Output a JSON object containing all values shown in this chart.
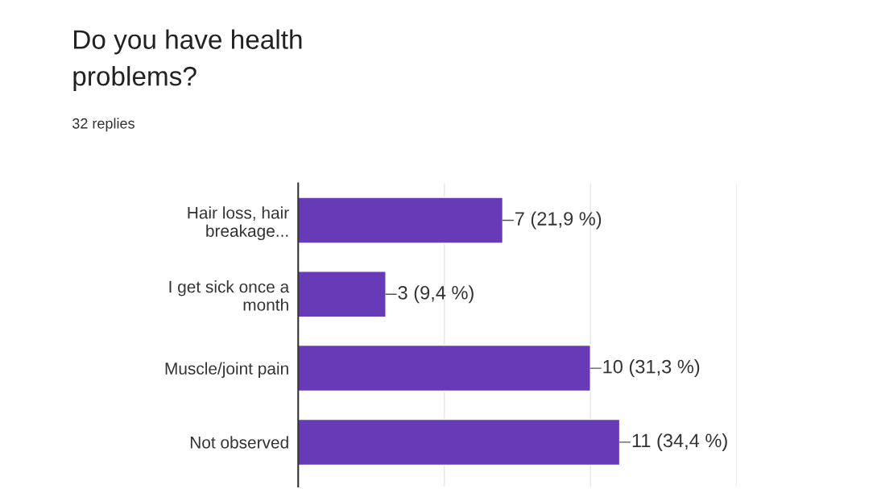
{
  "chart_data": {
    "type": "bar",
    "orientation": "horizontal",
    "title": "Do you have health\nproblems?",
    "subtitle": "32 replies",
    "categories": [
      "Hair loss, hair\nbreakage...",
      "I get sick once a\nmonth",
      "Muscle/joint pain",
      "Not observed"
    ],
    "values": [
      7,
      3,
      10,
      11
    ],
    "value_labels": [
      "7 (21,9 %)",
      "3 (9,4 %)",
      "10 (31,3 %)",
      "11 (34,4 %)"
    ],
    "color": "#673ab7",
    "ref_lines": [
      {
        "axis": "x",
        "value": 5,
        "color": "#e6e6e6"
      },
      {
        "axis": "x",
        "value": 10,
        "color": "#e6e6e6"
      },
      {
        "axis": "x",
        "value": 15,
        "color": "#e6e6e6"
      }
    ],
    "tick_labels": "y",
    "legend": false
  }
}
